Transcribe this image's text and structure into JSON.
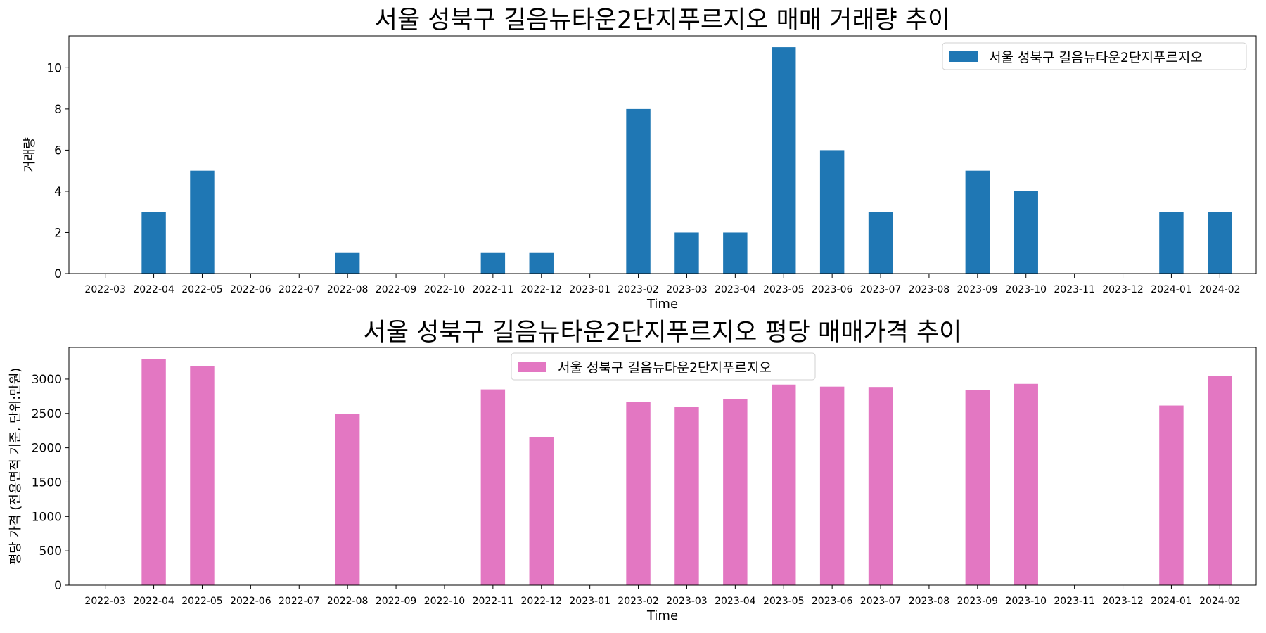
{
  "chart_data": [
    {
      "type": "bar",
      "title": "서울 성북구 길음뉴타운2단지푸르지오 매매 거래량 추이",
      "xlabel": "Time",
      "ylabel": "거래량",
      "ylim": [
        0,
        11.55
      ],
      "yticks": [
        0,
        2,
        4,
        6,
        8,
        10
      ],
      "grid": false,
      "legend_position": "top-right",
      "color": "#1f77b4",
      "categories": [
        "2022-03",
        "2022-04",
        "2022-05",
        "2022-06",
        "2022-07",
        "2022-08",
        "2022-09",
        "2022-10",
        "2022-11",
        "2022-12",
        "2023-01",
        "2023-02",
        "2023-03",
        "2023-04",
        "2023-05",
        "2023-06",
        "2023-07",
        "2023-08",
        "2023-09",
        "2023-10",
        "2023-11",
        "2023-12",
        "2024-01",
        "2024-02"
      ],
      "series": [
        {
          "name": "서울 성북구 길음뉴타운2단지푸르지오",
          "values": [
            0,
            3,
            5,
            0,
            0,
            1,
            0,
            0,
            1,
            1,
            0,
            8,
            2,
            2,
            11,
            6,
            3,
            0,
            5,
            4,
            0,
            0,
            3,
            3
          ]
        }
      ]
    },
    {
      "type": "bar",
      "title": "서울 성북구 길음뉴타운2단지푸르지오 평당 매매가격 추이",
      "xlabel": "Time",
      "ylabel": "평당 가격 (전용면적 기준, 단위:만원)",
      "ylim": [
        0,
        3460
      ],
      "yticks": [
        0,
        500,
        1000,
        1500,
        2000,
        2500,
        3000
      ],
      "grid": false,
      "legend_position": "top-center",
      "color": "#e377c2",
      "categories": [
        "2022-03",
        "2022-04",
        "2022-05",
        "2022-06",
        "2022-07",
        "2022-08",
        "2022-09",
        "2022-10",
        "2022-11",
        "2022-12",
        "2023-01",
        "2023-02",
        "2023-03",
        "2023-04",
        "2023-05",
        "2023-06",
        "2023-07",
        "2023-08",
        "2023-09",
        "2023-10",
        "2023-11",
        "2023-12",
        "2024-01",
        "2024-02"
      ],
      "series": [
        {
          "name": "서울 성북구 길음뉴타운2단지푸르지오",
          "values": [
            0,
            3290,
            3185,
            0,
            0,
            2490,
            0,
            0,
            2850,
            2160,
            0,
            2665,
            2595,
            2705,
            2920,
            2890,
            2885,
            0,
            2840,
            2930,
            0,
            0,
            2615,
            3045
          ]
        }
      ]
    }
  ]
}
